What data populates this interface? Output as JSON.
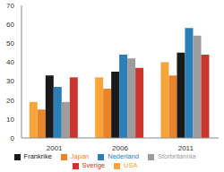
{
  "chart_data": {
    "type": "bar",
    "categories": [
      "2001",
      "2006",
      "2011"
    ],
    "series": [
      {
        "name": "USA",
        "color": "#f7a53a",
        "values": [
          19,
          32,
          40
        ]
      },
      {
        "name": "Japan",
        "color": "#e8852a",
        "values": [
          15,
          26,
          33
        ]
      },
      {
        "name": "Frankrike",
        "color": "#1a1a1a",
        "values": [
          33,
          35,
          45
        ]
      },
      {
        "name": "Nederland",
        "color": "#2a7fb8",
        "values": [
          27,
          44,
          58
        ]
      },
      {
        "name": "Storbritannia",
        "color": "#9d9d9d",
        "values": [
          19,
          42,
          54
        ]
      },
      {
        "name": "Sverige",
        "color": "#c8362d",
        "values": [
          32,
          37,
          44
        ]
      }
    ],
    "ylim": [
      0,
      70
    ],
    "yticks": [
      0,
      10,
      20,
      30,
      40,
      50,
      60,
      70
    ],
    "grid": false,
    "legend": "bottom"
  }
}
